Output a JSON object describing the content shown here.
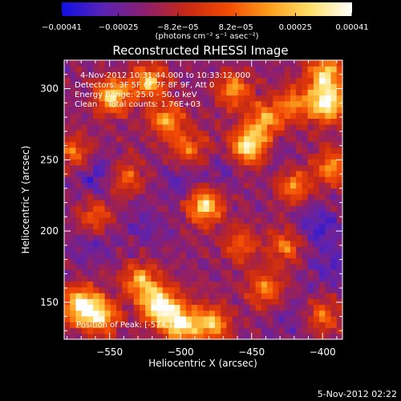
{
  "chart_data": {
    "type": "heatmap",
    "title": "Reconstructed RHESSI Image",
    "xlabel": "Heliocentric X (arcsec)",
    "ylabel": "Heliocentric Y (arcsec)",
    "xlim": [
      -582,
      -386
    ],
    "ylim": [
      124,
      320
    ],
    "x_ticks": [
      -550,
      -500,
      -450,
      -400
    ],
    "x_tick_labels": [
      "−550",
      "−500",
      "−450",
      "−400"
    ],
    "y_ticks": [
      150,
      200,
      250,
      300
    ],
    "y_tick_labels": [
      "150",
      "200",
      "250",
      "300"
    ],
    "colorbar": {
      "range": [
        -0.00041,
        0.00041
      ],
      "ticks": [
        -0.00041,
        -0.00025,
        -8.2e-05,
        8.2e-05,
        0.00025,
        0.00041
      ],
      "tick_labels": [
        "−0.00041",
        "−0.00025",
        "−8.2e−05",
        "8.2e−05",
        "0.00025",
        "0.00041"
      ],
      "unit_label": "(photons cm⁻² s⁻¹ asec⁻²)",
      "colors": [
        "#1010e6",
        "#5a23b4",
        "#8c1f6e",
        "#c62814",
        "#f24a05",
        "#fb9d1c",
        "#ffe06a",
        "#ffffff"
      ]
    },
    "annotations": [
      "4-Nov-2012 10:31:44.000 to 10:33:12.000",
      "Detectors: 3F 5F 6F 7F 8F 9F, Att 0",
      "Energy Range: 25.0 - 50.0 keV",
      "Clean    Total counts: 1.76E+03"
    ],
    "peak_label": "Position of Peak: [-574,142]",
    "peak_position": [
      -574,
      142
    ],
    "hot_regions": [
      {
        "x": -570,
        "y": 148,
        "intensity": 0.95
      },
      {
        "x": -555,
        "y": 140,
        "intensity": 0.7
      },
      {
        "x": -515,
        "y": 148,
        "intensity": 0.95
      },
      {
        "x": -500,
        "y": 135,
        "intensity": 0.85
      },
      {
        "x": -528,
        "y": 165,
        "intensity": 0.6
      },
      {
        "x": -478,
        "y": 135,
        "intensity": 0.65
      },
      {
        "x": -483,
        "y": 218,
        "intensity": 0.8
      },
      {
        "x": -452,
        "y": 260,
        "intensity": 0.85
      },
      {
        "x": -440,
        "y": 278,
        "intensity": 0.6
      },
      {
        "x": -397,
        "y": 290,
        "intensity": 0.9
      },
      {
        "x": -398,
        "y": 310,
        "intensity": 0.75
      },
      {
        "x": -393,
        "y": 245,
        "intensity": 0.55
      },
      {
        "x": -548,
        "y": 295,
        "intensity": 0.75
      },
      {
        "x": -522,
        "y": 305,
        "intensity": 0.65
      },
      {
        "x": -510,
        "y": 278,
        "intensity": 0.55
      },
      {
        "x": -495,
        "y": 258,
        "intensity": 0.45
      },
      {
        "x": -463,
        "y": 300,
        "intensity": 0.55
      },
      {
        "x": -420,
        "y": 232,
        "intensity": 0.5
      },
      {
        "x": -426,
        "y": 190,
        "intensity": 0.45
      },
      {
        "x": -440,
        "y": 160,
        "intensity": 0.5
      },
      {
        "x": -458,
        "y": 190,
        "intensity": 0.4
      },
      {
        "x": -575,
        "y": 255,
        "intensity": 0.45
      },
      {
        "x": -560,
        "y": 210,
        "intensity": 0.4
      },
      {
        "x": -538,
        "y": 238,
        "intensity": 0.4
      },
      {
        "x": -400,
        "y": 140,
        "intensity": 0.45
      },
      {
        "x": -420,
        "y": 290,
        "intensity": 0.45
      }
    ],
    "cold_regions": [
      {
        "x": -560,
        "y": 240,
        "intensity": 0.8
      },
      {
        "x": -500,
        "y": 235,
        "intensity": 0.6
      },
      {
        "x": -560,
        "y": 190,
        "intensity": 0.5
      },
      {
        "x": -405,
        "y": 205,
        "intensity": 0.8
      },
      {
        "x": -395,
        "y": 175,
        "intensity": 0.6
      },
      {
        "x": -430,
        "y": 255,
        "intensity": 0.4
      },
      {
        "x": -525,
        "y": 205,
        "intensity": 0.4
      },
      {
        "x": -470,
        "y": 240,
        "intensity": 0.45
      },
      {
        "x": -545,
        "y": 140,
        "intensity": 0.3
      },
      {
        "x": -420,
        "y": 140,
        "intensity": 0.4
      }
    ]
  },
  "footer_date": "5-Nov-2012 02:22"
}
